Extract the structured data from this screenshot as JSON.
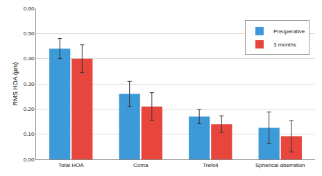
{
  "chart_data": {
    "type": "bar",
    "y_label": "RMS HOA (µm)",
    "categories": [
      "Total HOA",
      "Coma",
      "Trefoil",
      "Spherical aberration"
    ],
    "series": [
      {
        "name": "Preoperative",
        "color": "#3d9ad8",
        "values": [
          0.44,
          0.26,
          0.17,
          0.125
        ],
        "errors": [
          0.04,
          0.05,
          0.028,
          0.063
        ]
      },
      {
        "name": "3 months",
        "color": "#e8453d",
        "values": [
          0.4,
          0.21,
          0.14,
          0.092
        ],
        "errors": [
          0.055,
          0.055,
          0.033,
          0.062
        ]
      }
    ],
    "ylim": [
      0,
      0.6
    ],
    "yticks": [
      {
        "value": 0,
        "label": "0.00"
      },
      {
        "value": 0.1,
        "label": "0.10"
      },
      {
        "value": 0.2,
        "label": "0.20"
      },
      {
        "value": 0.3,
        "label": "0.30"
      },
      {
        "value": 0.4,
        "label": "0.40"
      },
      {
        "value": 0.5,
        "label": "0.50"
      },
      {
        "value": 0.6,
        "label": "0.60"
      }
    ],
    "grid": true,
    "legend": "upper right"
  }
}
